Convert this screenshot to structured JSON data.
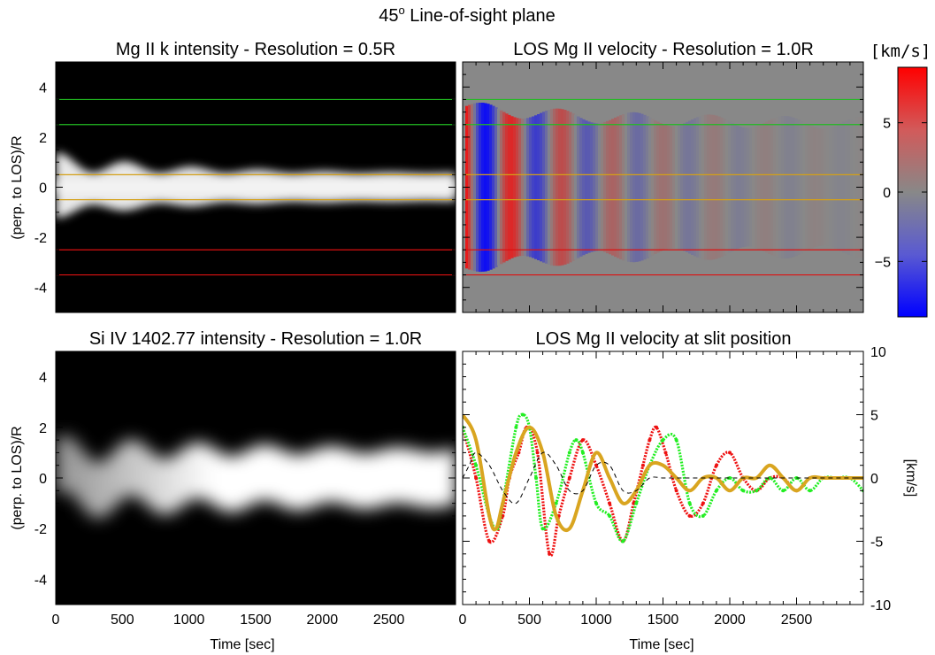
{
  "figure": {
    "suptitle": "45",
    "suptitle_sup": "o",
    "suptitle_rest": " Line-of-sight plane"
  },
  "chart_data": [
    {
      "type": "heatmap",
      "panel": "top-left",
      "title": "Mg II k intensity - Resolution = 0.5R",
      "ylabel": "(perp. to LOS)/R",
      "xlabel": "",
      "xlim": [
        0,
        3000
      ],
      "ylim": [
        -5,
        5
      ],
      "xticks": [],
      "yticks": [
        -4,
        -2,
        0,
        2,
        4
      ],
      "colormap": "grayscale",
      "horizontal_lines": [
        {
          "y": 3.5,
          "color": "#22bb22"
        },
        {
          "y": 2.5,
          "color": "#22bb22"
        },
        {
          "y": 0.5,
          "color": "#d4a017"
        },
        {
          "y": -0.5,
          "color": "#d4a017"
        },
        {
          "y": -2.5,
          "color": "#dd1111"
        },
        {
          "y": -3.5,
          "color": "#dd1111"
        }
      ],
      "band": {
        "center_y": 0,
        "half_width_start": 1.0,
        "half_width_end": 0.55,
        "osc_amplitude": 0.4,
        "osc_period_sec": 500
      }
    },
    {
      "type": "heatmap",
      "panel": "top-right",
      "title": "LOS Mg II velocity - Resolution = 1.0R",
      "xlabel": "",
      "xlim": [
        0,
        3000
      ],
      "ylim": [
        -5,
        5
      ],
      "colormap": "blue-gray-red",
      "colorbar": {
        "unit": "[km/s]",
        "ticks": [
          5,
          0,
          -5
        ],
        "tick_labels": [
          "5",
          "0",
          "−5"
        ],
        "range": [
          -9,
          9
        ]
      },
      "horizontal_lines": [
        {
          "y": 3.5,
          "color": "#22bb22"
        },
        {
          "y": 2.5,
          "color": "#22bb22"
        },
        {
          "y": 0.5,
          "color": "#d4a017"
        },
        {
          "y": -0.5,
          "color": "#d4a017"
        },
        {
          "y": -2.5,
          "color": "#dd1111"
        },
        {
          "y": -3.5,
          "color": "#dd1111"
        }
      ]
    },
    {
      "type": "heatmap",
      "panel": "bottom-left",
      "title": "Si IV 1402.77 intensity - Resolution = 1.0R",
      "ylabel": "(perp. to LOS)/R",
      "xlabel": "Time [sec]",
      "xlim": [
        0,
        3000
      ],
      "ylim": [
        -5,
        5
      ],
      "xticks": [
        0,
        500,
        1000,
        1500,
        2000,
        2500
      ],
      "yticks": [
        -4,
        -2,
        0,
        2,
        4
      ],
      "colormap": "grayscale"
    },
    {
      "type": "line",
      "panel": "bottom-right",
      "title": "LOS Mg II velocity at slit position",
      "xlabel": "Time [sec]",
      "ylabel": "[km/s]",
      "xlim": [
        0,
        3000
      ],
      "ylim": [
        -10,
        10
      ],
      "xticks": [
        0,
        500,
        1000,
        1500,
        2000,
        2500
      ],
      "yticks": [
        -10,
        -5,
        0,
        5,
        10
      ],
      "series": [
        {
          "color": "#ee1111",
          "style": "markers",
          "x": [
            0,
            100,
            200,
            300,
            350,
            420,
            480,
            560,
            650,
            720,
            800,
            900,
            1000,
            1100,
            1200,
            1280,
            1350,
            1400,
            1450,
            1520,
            1600,
            1700,
            1800,
            1900,
            2000,
            2100,
            2200,
            2300,
            2400,
            2500,
            2600,
            2700,
            2800,
            2900,
            3000
          ],
          "y": [
            4,
            0,
            -5,
            -3,
            0,
            2,
            4,
            2,
            -6,
            -3,
            0,
            3,
            1,
            -2,
            -5,
            -2,
            1,
            3,
            4,
            2,
            -1,
            -3,
            -2,
            1,
            2,
            0,
            -1,
            0,
            0,
            -1,
            0,
            0,
            0,
            0,
            0
          ]
        },
        {
          "color": "#22ee22",
          "style": "markers",
          "x": [
            0,
            100,
            200,
            260,
            300,
            400,
            450,
            500,
            550,
            600,
            700,
            800,
            850,
            900,
            1000,
            1100,
            1200,
            1300,
            1400,
            1500,
            1600,
            1700,
            1800,
            1900,
            2000,
            2100,
            2200,
            2300,
            2400,
            2500,
            2600,
            2700,
            2800,
            2900,
            3000
          ],
          "y": [
            4,
            1,
            -3,
            -4,
            -2,
            4,
            5,
            4,
            0,
            -4,
            -2,
            2,
            3,
            2,
            -2,
            -3,
            -5,
            -2,
            1,
            3,
            3,
            -2,
            -3,
            -1,
            0,
            -1,
            -1,
            0,
            -1,
            0,
            -1,
            0,
            0,
            0,
            -1
          ]
        },
        {
          "color": "#d9a520",
          "style": "line",
          "x": [
            0,
            100,
            200,
            250,
            300,
            400,
            500,
            600,
            700,
            800,
            900,
            1000,
            1100,
            1200,
            1300,
            1400,
            1500,
            1600,
            1700,
            1800,
            1900,
            2000,
            2100,
            2200,
            2300,
            2400,
            2500,
            2600,
            2700,
            2800,
            2900,
            3000
          ],
          "y": [
            5,
            3,
            -3,
            -4,
            -2,
            2,
            4,
            2,
            -3,
            -4,
            -1,
            2,
            0,
            -2,
            -1,
            1,
            1,
            0,
            -1,
            0,
            0,
            -1,
            0,
            0,
            1,
            0,
            -1,
            0,
            0,
            0,
            0,
            0
          ]
        },
        {
          "color": "#000000",
          "style": "dashed",
          "x": [
            0,
            50,
            100,
            200,
            300,
            400,
            500,
            600,
            700,
            800,
            900,
            1000,
            1100,
            1200,
            1300,
            1400,
            1500,
            1600,
            1700,
            1800,
            1900,
            2000,
            2100,
            2200,
            2300,
            2400,
            2500,
            2600,
            2700,
            2800,
            2900,
            3000
          ],
          "y": [
            0,
            1,
            2,
            1,
            -1,
            -2,
            0,
            2,
            1,
            -1,
            -1,
            1,
            1,
            -1,
            -1,
            0,
            0,
            0,
            0,
            0,
            0,
            0,
            0,
            0,
            0,
            0,
            0,
            0,
            0,
            0,
            0,
            0
          ]
        }
      ]
    }
  ]
}
